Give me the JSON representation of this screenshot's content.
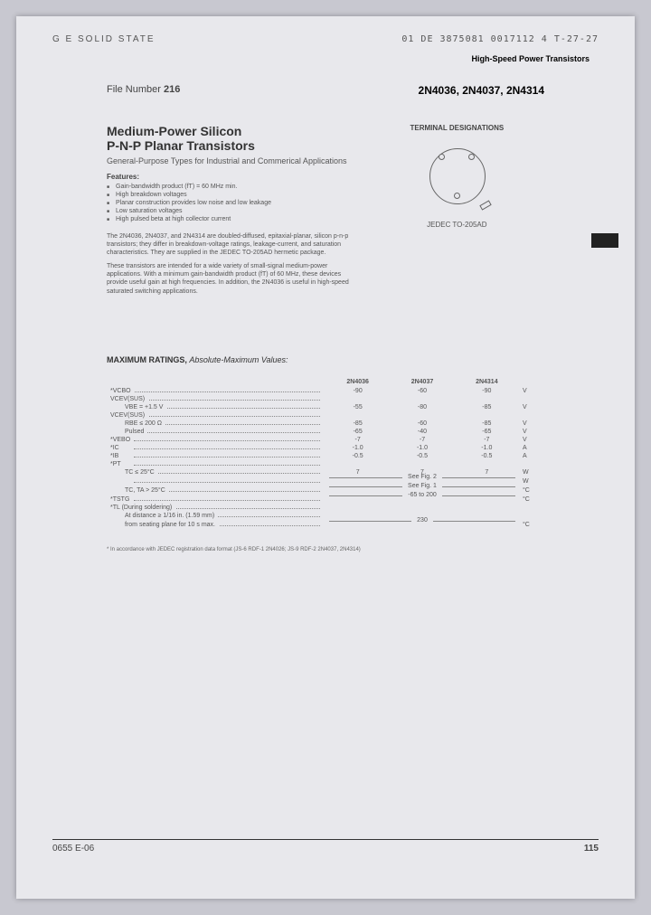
{
  "header": {
    "left": "G E SOLID STATE",
    "code": "01  DE  3875081 0017112 4  T-27-27",
    "right": "High-Speed Power Transistors"
  },
  "file_number_label": "File Number",
  "file_number": "216",
  "part_numbers": "2N4036, 2N4037, 2N4314",
  "title_line1": "Medium-Power Silicon",
  "title_line2": "P-N-P Planar Transistors",
  "subtitle": "General-Purpose Types for Industrial and Commerical Applications",
  "features_label": "Features:",
  "features": [
    "Gain-bandwidth product (fT) = 60 MHz min.",
    "High breakdown voltages",
    "Planar construction provides low noise and low leakage",
    "Low saturation voltages",
    "High pulsed beta at high collector current"
  ],
  "para1": "The 2N4036, 2N4037, and 2N4314 are doubled-diffused, epitaxial-planar, silicon p-n-p transistors; they differ in breakdown-voltage ratings, leakage-current, and saturation characteristics. They are supplied in the JEDEC TO-205AD hermetic package.",
  "para2": "These transistors are intended for a wide variety of small-signal medium-power applications. With a minimum gain-bandwidth product (fT) of 60 MHz, these devices provide useful gain at high frequencies. In addition, the 2N4036 is useful in high-speed saturated switching applications.",
  "terminal_label": "TERMINAL DESIGNATIONS",
  "package_name": "JEDEC TO-205AD",
  "ratings_title": "MAXIMUM RATINGS,",
  "ratings_subtitle": "Absolute-Maximum Values:",
  "table": {
    "headers": [
      "2N4036",
      "2N4037",
      "2N4314"
    ],
    "rows": [
      {
        "param": "*VCBO",
        "vals": [
          "-90",
          "-60",
          "-90"
        ],
        "unit": "V"
      },
      {
        "param": "VCEV(SUS)",
        "vals": [
          "",
          "",
          ""
        ],
        "unit": ""
      },
      {
        "param": "VBE = +1.5 V",
        "sub": true,
        "vals": [
          "-55",
          "-80",
          "-85"
        ],
        "unit": "V"
      },
      {
        "param": "VCEV(SUS)",
        "vals": [
          "",
          "",
          ""
        ],
        "unit": ""
      },
      {
        "param": "RBE ≤ 200 Ω",
        "sub": true,
        "vals": [
          "-85",
          "-60",
          "-85"
        ],
        "unit": "V"
      },
      {
        "param": "Pulsed",
        "sub": true,
        "vals": [
          "-65",
          "-40",
          "-65"
        ],
        "unit": "V"
      },
      {
        "param": "*VEBO",
        "vals": [
          "-7",
          "-7",
          "-7"
        ],
        "unit": "V"
      },
      {
        "param": "*IC",
        "vals": [
          "-1.0",
          "-1.0",
          "-1.0"
        ],
        "unit": "A"
      },
      {
        "param": "*IB",
        "vals": [
          "-0.5",
          "-0.5",
          "-0.5"
        ],
        "unit": "A"
      },
      {
        "param": "*PT",
        "vals": [
          "",
          "",
          ""
        ],
        "unit": ""
      },
      {
        "param": "TC ≤ 25°C",
        "sub": true,
        "vals": [
          "7",
          "7",
          "7"
        ],
        "unit": "W"
      },
      {
        "param": "",
        "sub": true,
        "span": "See Fig. 2",
        "unit": "W"
      },
      {
        "param": "TC, TA > 25°C",
        "sub": true,
        "span": "See Fig. 1",
        "unit": "°C"
      },
      {
        "param": "*TSTG",
        "span": "-65 to 200",
        "unit": "°C"
      },
      {
        "param": "*TL (During soldering)",
        "vals": [
          "",
          "",
          ""
        ],
        "unit": ""
      },
      {
        "param": "At distance ≥ 1/16 in. (1.59 mm)",
        "sub": true,
        "vals": [
          "",
          "",
          ""
        ],
        "unit": ""
      },
      {
        "param": "from seating plane for 10 s max.",
        "sub": true,
        "span": "230",
        "unit": "°C"
      }
    ]
  },
  "footnote": "* In accordance with JEDEC registration data format (JS-6 RDF-1 2N4026; JS-9 RDF-2 2N4037, 2N4314)",
  "page_number": "115",
  "bottom_code": "0655    E-06"
}
